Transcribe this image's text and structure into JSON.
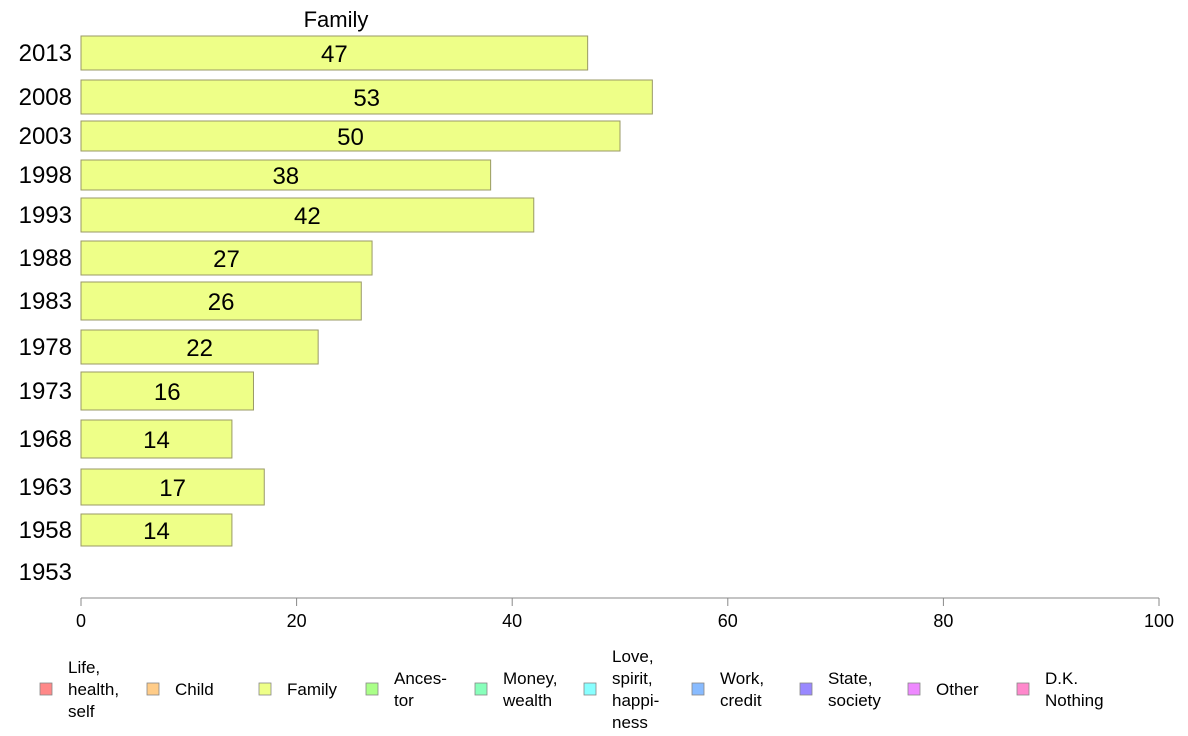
{
  "chart_data": {
    "type": "bar",
    "orientation": "horizontal",
    "title": "Family",
    "categories": [
      "2013",
      "2008",
      "2003",
      "1998",
      "1993",
      "1988",
      "1983",
      "1978",
      "1973",
      "1968",
      "1963",
      "1958",
      "1953"
    ],
    "series": [
      {
        "name": "Family",
        "values": [
          47,
          53,
          50,
          38,
          42,
          27,
          26,
          22,
          16,
          14,
          17,
          14,
          null
        ],
        "color": "#eeff88"
      }
    ],
    "xlim": [
      0,
      100
    ],
    "xticks": [
      0,
      20,
      40,
      60,
      80,
      100
    ],
    "grid": false,
    "legend_position": "bottom",
    "legend": [
      {
        "label": "Life, health, self",
        "lines": [
          "Life,",
          "health,",
          "self"
        ],
        "color": "#ff8888"
      },
      {
        "label": "Child",
        "lines": [
          "Child"
        ],
        "color": "#ffcc88"
      },
      {
        "label": "Family",
        "lines": [
          "Family"
        ],
        "color": "#eeff88"
      },
      {
        "label": "Ances- tor",
        "lines": [
          "Ances-",
          "tor"
        ],
        "color": "#aaff88"
      },
      {
        "label": "Money, wealth",
        "lines": [
          "Money,",
          "wealth"
        ],
        "color": "#88ffbb"
      },
      {
        "label": "Love, spirit, happi- ness",
        "lines": [
          "Love,",
          "spirit,",
          "happi-",
          "ness"
        ],
        "color": "#88ffff"
      },
      {
        "label": "Work, credit",
        "lines": [
          "Work,",
          "credit"
        ],
        "color": "#88bbff"
      },
      {
        "label": "State, society",
        "lines": [
          "State,",
          "society"
        ],
        "color": "#9988ff"
      },
      {
        "label": "Other",
        "lines": [
          "Other"
        ],
        "color": "#ee88ff"
      },
      {
        "label": "D.K. Nothing",
        "lines": [
          "D.K.",
          "Nothing"
        ],
        "color": "#ff88cc"
      }
    ]
  }
}
